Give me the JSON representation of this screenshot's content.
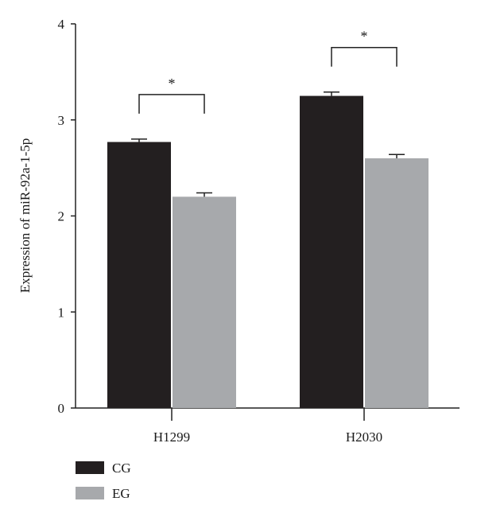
{
  "chart_data": {
    "type": "bar",
    "categories": [
      "H1299",
      "H2030"
    ],
    "series": [
      {
        "name": "CG",
        "values": [
          2.77,
          3.25
        ],
        "errors": [
          0.03,
          0.04
        ],
        "color": "#231f20"
      },
      {
        "name": "EG",
        "values": [
          2.2,
          2.6
        ],
        "errors": [
          0.04,
          0.04
        ],
        "color": "#a7a9ac"
      }
    ],
    "ylabel": "Expression of miR-92a-1-5p",
    "xlabel": "",
    "ylim": [
      0,
      4
    ],
    "yticks": [
      "0",
      "1",
      "2",
      "3",
      "4"
    ],
    "significance": [
      {
        "category": "H1299",
        "label": "*"
      },
      {
        "category": "H2030",
        "label": "*"
      }
    ],
    "legend_position": "bottom-left",
    "grid": false
  }
}
